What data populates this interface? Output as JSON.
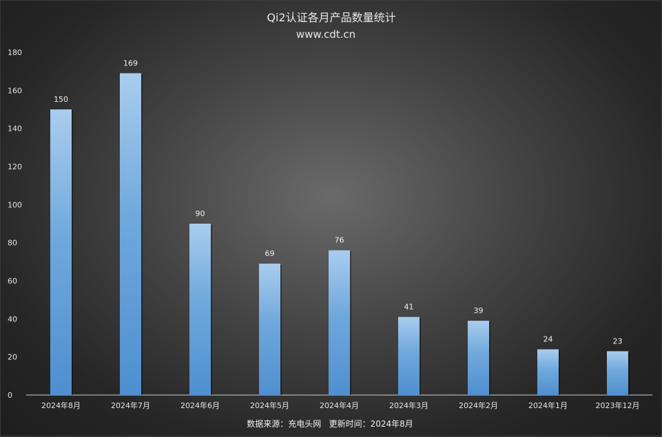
{
  "chart_data": {
    "type": "bar",
    "title": "Qi2认证各月产品数量统计",
    "subtitle": "www.cdt.cn",
    "categories": [
      "2024年8月",
      "2024年7月",
      "2024年6月",
      "2024年5月",
      "2024年4月",
      "2024年3月",
      "2024年2月",
      "2024年1月",
      "2023年12月"
    ],
    "values": [
      150,
      169,
      90,
      69,
      76,
      41,
      39,
      24,
      23
    ],
    "ylim": [
      0,
      180
    ],
    "yticks": [
      0,
      20,
      40,
      60,
      80,
      100,
      120,
      140,
      160,
      180
    ],
    "xlabel": "",
    "ylabel": "",
    "grid": false,
    "legend": "none",
    "bar_color": "#5b9bd5",
    "footer": "数据来源：充电头网   更新时间：2024年8月"
  }
}
